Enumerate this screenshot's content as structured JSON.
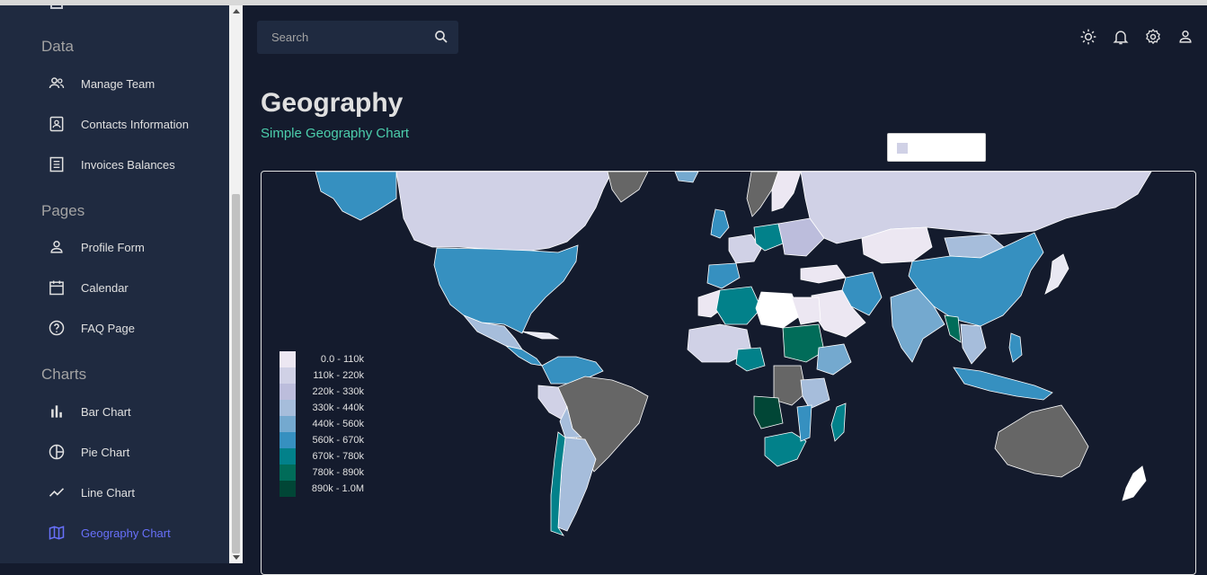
{
  "sidebar": {
    "sections": [
      {
        "title": "Data",
        "items": [
          {
            "label": "Manage Team",
            "icon": "people-icon"
          },
          {
            "label": "Contacts Information",
            "icon": "contacts-icon"
          },
          {
            "label": "Invoices Balances",
            "icon": "receipt-icon"
          }
        ]
      },
      {
        "title": "Pages",
        "items": [
          {
            "label": "Profile Form",
            "icon": "person-icon"
          },
          {
            "label": "Calendar",
            "icon": "calendar-icon"
          },
          {
            "label": "FAQ Page",
            "icon": "help-icon"
          }
        ]
      },
      {
        "title": "Charts",
        "items": [
          {
            "label": "Bar Chart",
            "icon": "bar-chart-icon"
          },
          {
            "label": "Pie Chart",
            "icon": "pie-chart-icon"
          },
          {
            "label": "Line Chart",
            "icon": "line-chart-icon"
          },
          {
            "label": "Geography Chart",
            "icon": "map-icon",
            "active": true
          }
        ]
      }
    ]
  },
  "search": {
    "placeholder": "Search"
  },
  "header": {
    "icons": [
      "light-mode-icon",
      "notifications-icon",
      "settings-icon",
      "person-icon"
    ]
  },
  "page": {
    "title": "Geography",
    "subtitle": "Simple Geography Chart"
  },
  "legend": {
    "items": [
      {
        "label": "0.0 - 110k",
        "color": "#ece7f2"
      },
      {
        "label": "110k - 220k",
        "color": "#d0d1e6"
      },
      {
        "label": "220k - 330k",
        "color": "#bcbddc"
      },
      {
        "label": "330k - 440k",
        "color": "#a6bddb"
      },
      {
        "label": "440k - 560k",
        "color": "#74a9cf"
      },
      {
        "label": "560k - 670k",
        "color": "#3690c0"
      },
      {
        "label": "670k - 780k",
        "color": "#02818a"
      },
      {
        "label": "780k - 890k",
        "color": "#016c59"
      },
      {
        "label": "890k - 1.0M",
        "color": "#014636"
      }
    ]
  },
  "colors": {
    "accent": "#4cceac",
    "active": "#6870fa",
    "sidebar_bg": "#1f2a40",
    "main_bg": "#141b2d",
    "no_data": "#666666"
  }
}
